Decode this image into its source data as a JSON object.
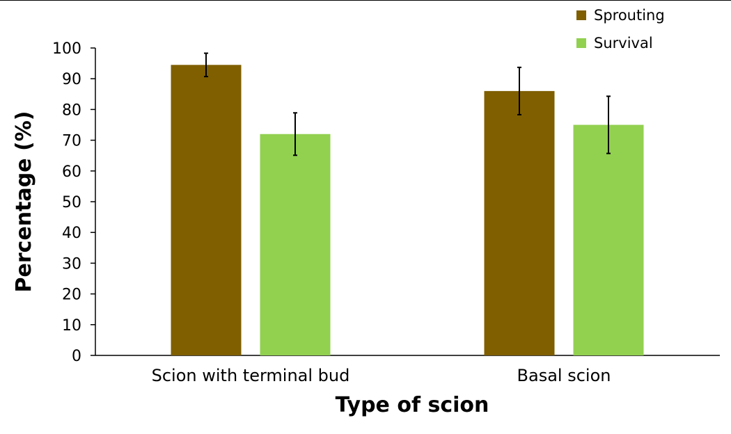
{
  "chart_data": {
    "type": "bar",
    "xlabel": "Type of scion",
    "ylabel": "Percentage (%)",
    "ylim": [
      0,
      100
    ],
    "yticks": [
      0,
      10,
      20,
      30,
      40,
      50,
      60,
      70,
      80,
      90,
      100
    ],
    "categories": [
      "Scion with terminal bud",
      "Basal scion"
    ],
    "series": [
      {
        "name": "Sprouting",
        "color": "#7f5f00",
        "values": [
          94.5,
          86
        ],
        "error": [
          3.8,
          7.7
        ]
      },
      {
        "name": "Survival",
        "color": "#92d050",
        "values": [
          72,
          75
        ],
        "error": [
          6.9,
          9.3
        ]
      }
    ],
    "legend_position": "top-right",
    "grid": false
  }
}
